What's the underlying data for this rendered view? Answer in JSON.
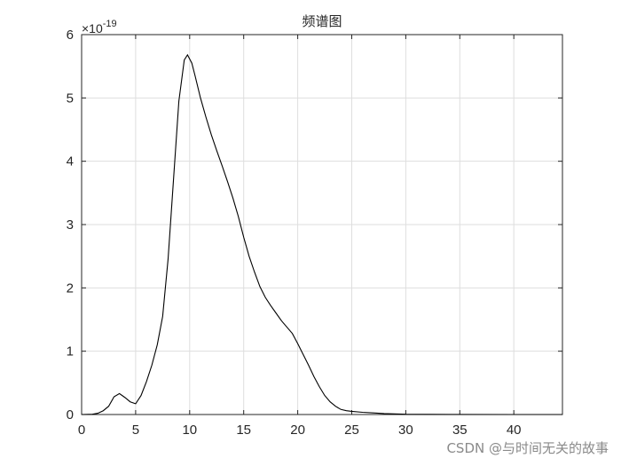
{
  "chart_data": {
    "type": "line",
    "title": "频谱图",
    "xlabel": "",
    "ylabel": "",
    "y_exponent_label": "×10",
    "y_exponent_power": "-19",
    "xlim": [
      0,
      44.5
    ],
    "ylim": [
      0,
      6
    ],
    "x_ticks": [
      0,
      5,
      10,
      15,
      20,
      25,
      30,
      35,
      40
    ],
    "y_ticks": [
      0,
      1,
      2,
      3,
      4,
      5,
      6
    ],
    "grid": true,
    "line_color": "#000000",
    "series": [
      {
        "x": [
          0,
          1,
          1.5,
          2,
          2.5,
          3,
          3.5,
          4,
          4.5,
          5,
          5.5,
          6,
          6.5,
          7,
          7.5,
          8,
          8.5,
          9,
          9.5,
          9.8,
          10.2,
          10.5,
          11,
          11.5,
          12,
          12.5,
          13,
          13.5,
          14,
          14.5,
          15,
          15.5,
          16,
          16.5,
          17,
          17.5,
          18,
          18.5,
          19,
          19.5,
          20,
          20.5,
          21,
          21.5,
          22,
          22.5,
          23,
          23.5,
          24,
          24.5,
          25,
          26,
          27,
          28,
          29,
          30,
          32,
          35,
          40,
          44.5
        ],
        "values": [
          0,
          0.005,
          0.02,
          0.06,
          0.13,
          0.28,
          0.33,
          0.27,
          0.2,
          0.17,
          0.3,
          0.52,
          0.78,
          1.1,
          1.55,
          2.45,
          3.7,
          4.95,
          5.6,
          5.68,
          5.55,
          5.35,
          5.0,
          4.7,
          4.42,
          4.17,
          3.93,
          3.68,
          3.42,
          3.13,
          2.8,
          2.5,
          2.25,
          2.02,
          1.85,
          1.72,
          1.6,
          1.48,
          1.38,
          1.28,
          1.12,
          0.95,
          0.78,
          0.6,
          0.44,
          0.3,
          0.2,
          0.13,
          0.08,
          0.06,
          0.05,
          0.035,
          0.025,
          0.015,
          0.01,
          0.005,
          0.003,
          0.001,
          0.0,
          0.0
        ]
      }
    ]
  },
  "watermark": "CSDN @与时间无关的故事"
}
